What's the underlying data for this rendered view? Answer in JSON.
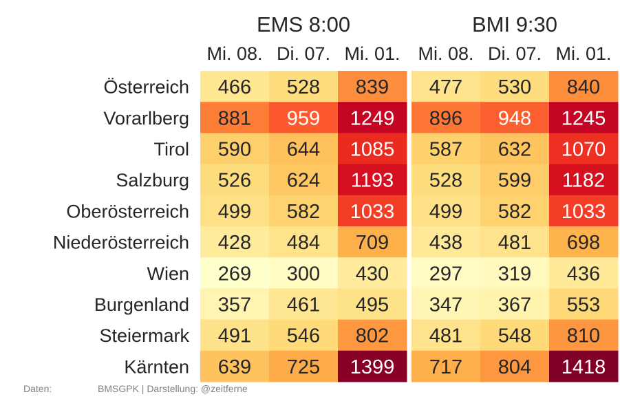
{
  "chart_data": {
    "type": "heatmap",
    "rows": [
      "Österreich",
      "Vorarlberg",
      "Tirol",
      "Salzburg",
      "Oberösterreich",
      "Niederösterreich",
      "Wien",
      "Burgenland",
      "Steiermark",
      "Kärnten"
    ],
    "panels": [
      {
        "title": "EMS 8:00",
        "columns": [
          "Mi. 08.",
          "Di. 07.",
          "Mi. 01."
        ],
        "values": [
          [
            466,
            528,
            839
          ],
          [
            881,
            959,
            1249
          ],
          [
            590,
            644,
            1085
          ],
          [
            526,
            624,
            1193
          ],
          [
            499,
            582,
            1033
          ],
          [
            428,
            484,
            709
          ],
          [
            269,
            300,
            430
          ],
          [
            357,
            461,
            495
          ],
          [
            491,
            546,
            802
          ],
          [
            639,
            725,
            1399
          ]
        ]
      },
      {
        "title": "BMI 9:30",
        "columns": [
          "Mi. 08.",
          "Di. 07.",
          "Mi. 01."
        ],
        "values": [
          [
            477,
            530,
            840
          ],
          [
            896,
            948,
            1245
          ],
          [
            587,
            632,
            1070
          ],
          [
            528,
            599,
            1182
          ],
          [
            499,
            582,
            1033
          ],
          [
            438,
            481,
            698
          ],
          [
            297,
            319,
            436
          ],
          [
            347,
            367,
            553
          ],
          [
            481,
            548,
            810
          ],
          [
            717,
            804,
            1418
          ]
        ]
      }
    ],
    "colormap": "YlOrRd",
    "color_range": [
      269,
      1418
    ],
    "grid": false,
    "legend": "none"
  },
  "footer": {
    "label": "Daten:",
    "text": "BMSGPK | Darstellung: @zeitferne"
  }
}
